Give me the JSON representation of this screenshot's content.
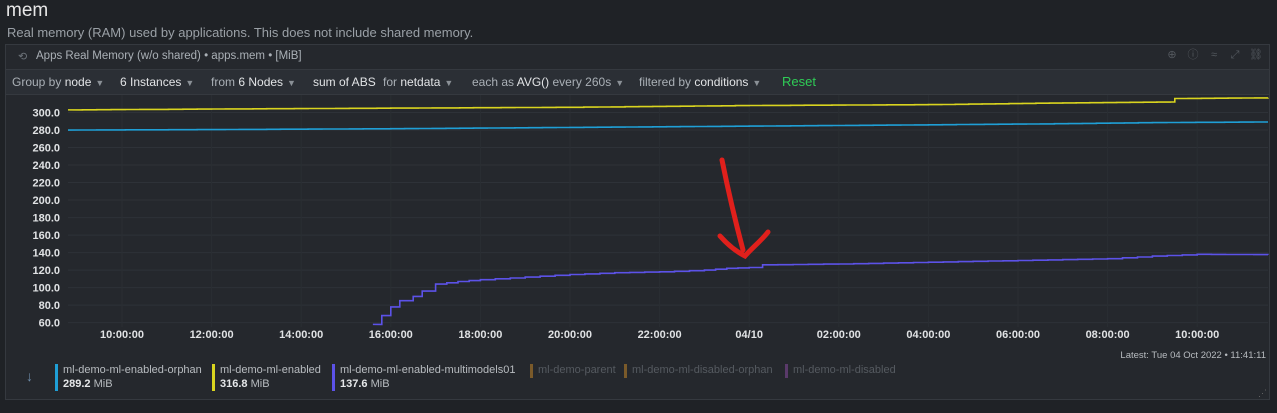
{
  "header": {
    "title": "mem",
    "description": "Real memory (RAM) used by applications. This does not include shared memory."
  },
  "panel": {
    "title": "Apps Real Memory (w/o shared) • apps.mem • [MiB]",
    "tools": [
      "zoom-icon",
      "info-icon",
      "compare-icon",
      "fullscreen-icon",
      "link-icon"
    ]
  },
  "query": {
    "group_by_label": "Group by",
    "group_by_value": "node",
    "instances": "6 Instances",
    "from_label": "from",
    "nodes": "6 Nodes",
    "agg": "sum of ABS",
    "for_label": "for",
    "for_value": "netdata",
    "each_label": "each as",
    "each_value": "AVG()",
    "every": "every 260s",
    "filtered_label": "filtered by",
    "filtered_value": "conditions",
    "reset": "Reset"
  },
  "chart_data": {
    "type": "line",
    "yticks": [
      "300.0",
      "280.0",
      "260.0",
      "240.0",
      "220.0",
      "200.0",
      "180.0",
      "160.0",
      "140.0",
      "120.0",
      "100.0",
      "80.0",
      "60.0"
    ],
    "ylim": [
      55,
      320
    ],
    "xticks": [
      "10:00:00",
      "12:00:00",
      "14:00:00",
      "16:00:00",
      "18:00:00",
      "20:00:00",
      "22:00:00",
      "04/10",
      "02:00:00",
      "04:00:00",
      "06:00:00",
      "08:00:00",
      "10:00:00"
    ],
    "x_hours_start": 8.5,
    "x_hours_end": 35.75,
    "series": [
      {
        "name": "ml-demo-ml-enabled-orphan",
        "color": "#1f9fd6",
        "hours": [
          8.5,
          12,
          16,
          20,
          24,
          28,
          30.5,
          33,
          35.75
        ],
        "values": [
          280,
          280.5,
          281.5,
          283,
          284.5,
          286,
          287,
          288.5,
          289.2
        ]
      },
      {
        "name": "ml-demo-ml-enabled",
        "color": "#d9d41f",
        "hours": [
          8.5,
          12,
          16,
          20,
          24,
          28,
          31,
          33.4,
          33.5,
          35.75
        ],
        "values": [
          303,
          304,
          305,
          306,
          308,
          309,
          311,
          312,
          316,
          316.8
        ]
      },
      {
        "name": "ml-demo-ml-enabled-multimodels01",
        "color": "#5c52e8",
        "hours": [
          15.6,
          15.8,
          16,
          16.2,
          16.5,
          16.7,
          17,
          17.5,
          18,
          19,
          20,
          21,
          22,
          23,
          23.5,
          24,
          24.3,
          26,
          28,
          30,
          32,
          33,
          34,
          35.75
        ],
        "values": [
          58,
          68,
          78,
          85,
          90,
          96,
          104,
          107,
          109,
          112,
          115,
          117,
          118,
          120,
          122,
          123,
          126,
          127,
          129,
          131,
          133,
          136,
          138,
          137.6
        ]
      }
    ]
  },
  "latest": "Latest:  Tue 04 Oct 2022 • 11:41:11",
  "legend": [
    {
      "name": "ml-demo-ml-enabled-orphan",
      "value": "289.2",
      "unit": "MiB",
      "color": "#1f9fd6",
      "active": true
    },
    {
      "name": "ml-demo-ml-enabled",
      "value": "316.8",
      "unit": "MiB",
      "color": "#d9d41f",
      "active": true
    },
    {
      "name": "ml-demo-ml-enabled-multimodels01",
      "value": "137.6",
      "unit": "MiB",
      "color": "#5c52e8",
      "active": true
    },
    {
      "name": "ml-demo-parent",
      "color": "#7a5a2a",
      "active": false
    },
    {
      "name": "ml-demo-ml-disabled-orphan",
      "color": "#7a5a2a",
      "active": false
    },
    {
      "name": "ml-demo-ml-disabled",
      "color": "#5a3a6a",
      "active": false
    }
  ]
}
